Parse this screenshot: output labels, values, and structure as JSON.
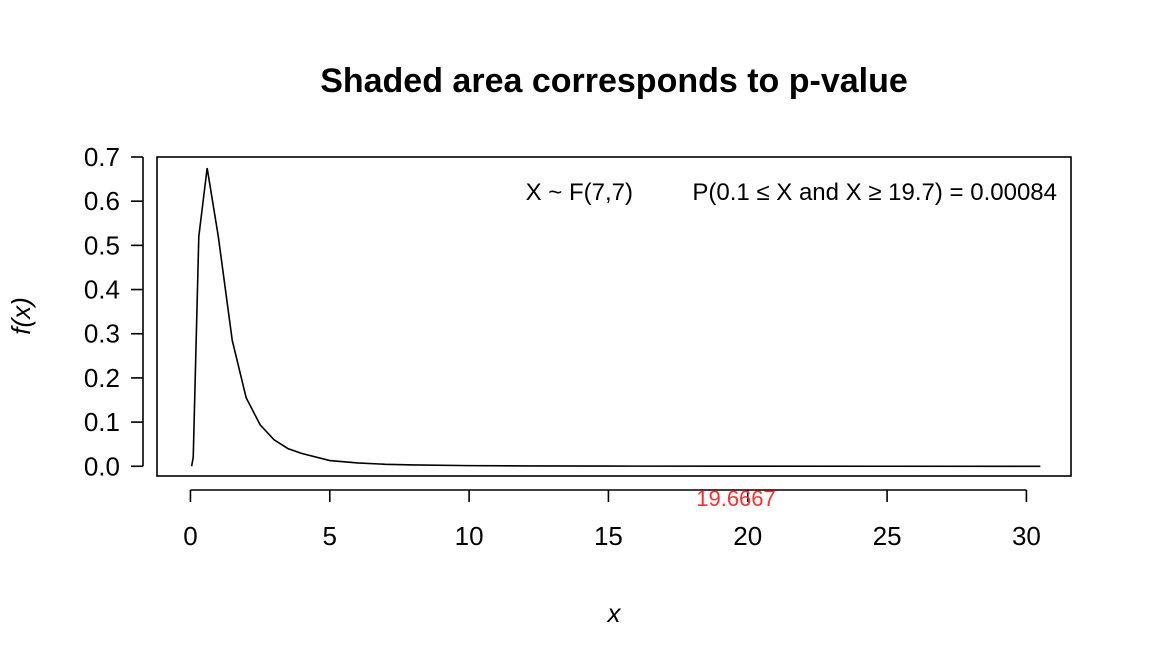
{
  "chart_data": {
    "type": "area",
    "title": "Shaded area corresponds to p-value",
    "xlabel": "x",
    "ylabel": "f(x)",
    "xlim": [
      -1.2,
      31.6
    ],
    "ylim": [
      -0.022,
      0.7
    ],
    "xticks": [
      "0",
      "5",
      "10",
      "15",
      "20",
      "25",
      "30"
    ],
    "yticks": [
      "0.0",
      "0.1",
      "0.2",
      "0.3",
      "0.4",
      "0.5",
      "0.6",
      "0.7"
    ],
    "grid": false,
    "series": [
      {
        "x": [
          0.05,
          0.1,
          0.3,
          0.6,
          1.0,
          1.5,
          2.0,
          2.5,
          3.0,
          3.5,
          4.0,
          5.0,
          6.0,
          7.0,
          8.0,
          10.0,
          12.0,
          15.0,
          20.0,
          25.0,
          30.5
        ],
        "y": [
          0.003,
          0.02,
          0.52,
          0.675,
          0.52,
          0.285,
          0.155,
          0.094,
          0.06,
          0.04,
          0.029,
          0.013,
          0.0075,
          0.0045,
          0.003,
          0.0015,
          0.0008,
          0.0004,
          0.00012,
          5e-05,
          2e-05
        ]
      }
    ],
    "annotations": {
      "distribution": "X ~ F(7,7)",
      "probability_text": "P(0.1 ≤ X and X ≥ 19.7) = 0.00084",
      "critical_value_label": "19.6667",
      "critical_value": 19.6667,
      "critical_color": "#ff3030"
    }
  }
}
